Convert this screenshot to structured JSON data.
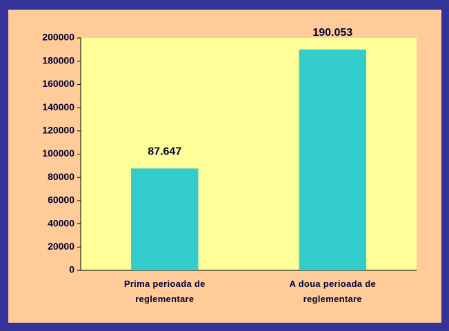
{
  "chart_data": {
    "type": "bar",
    "categories": [
      "Prima perioada de reglementare",
      "A doua perioada de reglementare"
    ],
    "values": [
      87647,
      190053
    ],
    "value_labels": [
      "87.647",
      "190.053"
    ],
    "color": "#33CCCC",
    "ylim": [
      0,
      200000
    ],
    "yticks": [
      0,
      20000,
      40000,
      60000,
      80000,
      100000,
      120000,
      140000,
      160000,
      180000,
      200000
    ],
    "grid": false
  }
}
